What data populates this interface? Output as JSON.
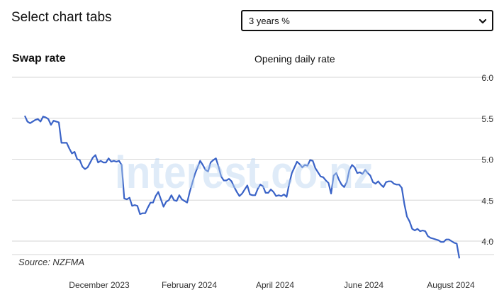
{
  "page": {
    "heading": "Select chart tabs",
    "select": {
      "selected": "3 years %"
    },
    "watermark": "interest.co.nz",
    "source": "Source: NZFMA"
  },
  "chart_data": {
    "type": "line",
    "title": "Swap rate",
    "subtitle": "Opening daily rate",
    "xlabel": "",
    "ylabel": "",
    "ylim": [
      3.75,
      6.0
    ],
    "yticks": [
      "6.0",
      "5.5",
      "5.0",
      "4.5",
      "4.0"
    ],
    "xticks": [
      "December 2023",
      "February 2024",
      "April 2024",
      "June 2024",
      "August 2024"
    ],
    "grid": true,
    "line_color": "#3a63c7",
    "series": [
      {
        "values": [
          5.53,
          5.46,
          5.44,
          5.46,
          5.48,
          5.49,
          5.46,
          5.52,
          5.51,
          5.49,
          5.42,
          5.47,
          5.46,
          5.45,
          5.2,
          5.2,
          5.2,
          5.13,
          5.07,
          5.09,
          5.0,
          4.99,
          4.91,
          4.88,
          4.9,
          4.96,
          5.02,
          5.05,
          4.96,
          4.98,
          4.96,
          4.96,
          5.01,
          4.97,
          4.98,
          4.97,
          4.98,
          4.93,
          4.52,
          4.51,
          4.53,
          4.43,
          4.44,
          4.43,
          4.33,
          4.34,
          4.34,
          4.41,
          4.47,
          4.47,
          4.55,
          4.6,
          4.51,
          4.42,
          4.48,
          4.5,
          4.56,
          4.5,
          4.49,
          4.56,
          4.51,
          4.49,
          4.47,
          4.6,
          4.71,
          4.82,
          4.9,
          4.98,
          4.93,
          4.87,
          4.85,
          4.96,
          4.99,
          5.01,
          4.91,
          4.79,
          4.74,
          4.74,
          4.76,
          4.73,
          4.66,
          4.6,
          4.55,
          4.58,
          4.63,
          4.68,
          4.57,
          4.56,
          4.56,
          4.64,
          4.69,
          4.67,
          4.59,
          4.59,
          4.63,
          4.6,
          4.55,
          4.56,
          4.55,
          4.57,
          4.54,
          4.7,
          4.83,
          4.9,
          4.97,
          4.94,
          4.9,
          4.93,
          4.92,
          4.99,
          4.98,
          4.89,
          4.84,
          4.79,
          4.78,
          4.74,
          4.71,
          4.58,
          4.8,
          4.83,
          4.75,
          4.69,
          4.66,
          4.72,
          4.87,
          4.93,
          4.9,
          4.83,
          4.84,
          4.82,
          4.87,
          4.83,
          4.8,
          4.72,
          4.7,
          4.73,
          4.69,
          4.66,
          4.72,
          4.73,
          4.73,
          4.7,
          4.69,
          4.69,
          4.65,
          4.45,
          4.3,
          4.24,
          4.15,
          4.13,
          4.15,
          4.12,
          4.13,
          4.12,
          4.06,
          4.04,
          4.03,
          4.02,
          4.01,
          3.99,
          3.99,
          4.02,
          4.02,
          4.0,
          3.98,
          3.97,
          3.79
        ]
      }
    ]
  }
}
